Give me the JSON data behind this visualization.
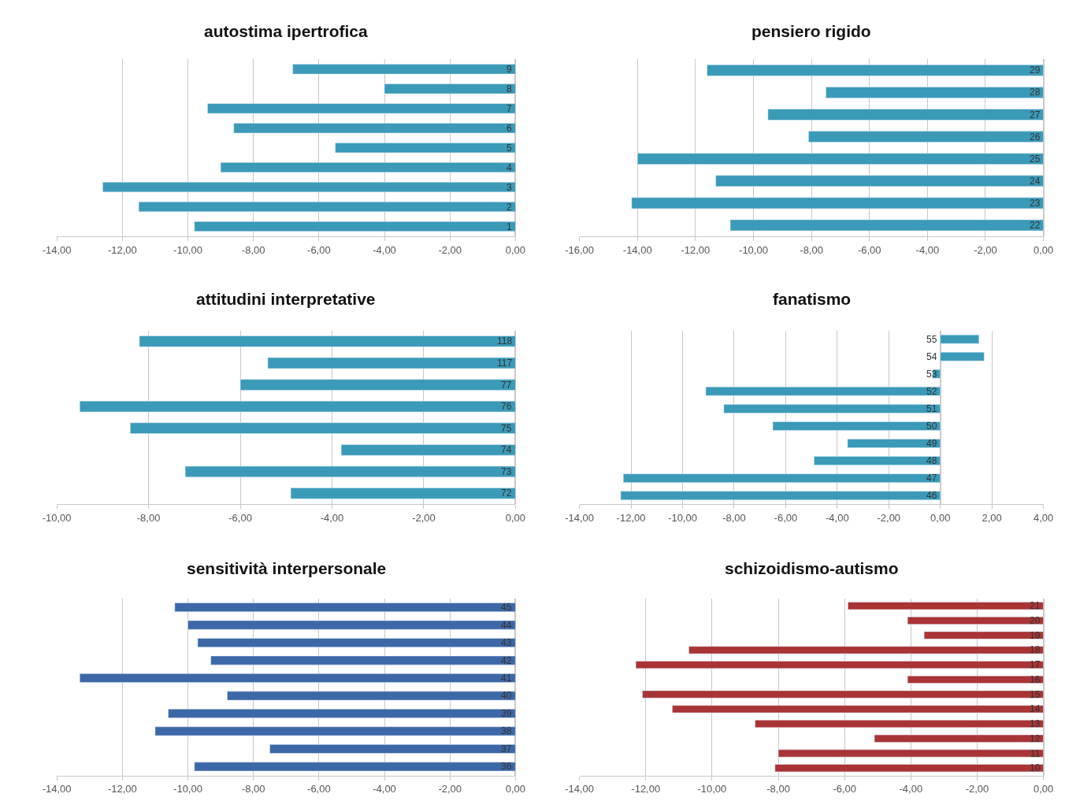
{
  "chart_data": [
    {
      "type": "bar",
      "orientation": "horizontal",
      "title": "autostima ipertrofica",
      "categories": [
        "9",
        "8",
        "7",
        "6",
        "5",
        "4",
        "3",
        "2",
        "1"
      ],
      "values": [
        -6.8,
        -4.0,
        -9.4,
        -8.6,
        -5.5,
        -9.0,
        -12.6,
        -11.5,
        -9.8
      ],
      "color": "#3a9ab8",
      "xlim": [
        -14,
        0
      ],
      "xticks": [
        {
          "value": -14,
          "label": "-14,00"
        },
        {
          "value": -12,
          "label": "-12,00"
        },
        {
          "value": -10,
          "label": "-10,00"
        },
        {
          "value": -8,
          "label": "-8,00"
        },
        {
          "value": -6,
          "label": "-6,00"
        },
        {
          "value": -4,
          "label": "-4,00"
        },
        {
          "value": -2,
          "label": "-2,00"
        },
        {
          "value": 0,
          "label": "0,00"
        }
      ],
      "grid": "x"
    },
    {
      "type": "bar",
      "orientation": "horizontal",
      "title": "pensiero rigido",
      "categories": [
        "29",
        "28",
        "27",
        "26",
        "25",
        "24",
        "23",
        "22"
      ],
      "values": [
        -11.6,
        -7.5,
        -9.5,
        -8.1,
        -14.0,
        -11.3,
        -14.2,
        -10.8
      ],
      "color": "#3a9ab8",
      "xlim": [
        -16,
        0
      ],
      "xticks": [
        {
          "value": -16,
          "label": "-16,00"
        },
        {
          "value": -14,
          "label": "-14,00"
        },
        {
          "value": -12,
          "label": "-12,00"
        },
        {
          "value": -10,
          "label": "-10,00"
        },
        {
          "value": -8,
          "label": "-8,00"
        },
        {
          "value": -6,
          "label": "-6,00"
        },
        {
          "value": -4,
          "label": "-4,00"
        },
        {
          "value": -2,
          "label": "-2,00"
        },
        {
          "value": 0,
          "label": "0,00"
        }
      ],
      "grid": "x"
    },
    {
      "type": "bar",
      "orientation": "horizontal",
      "title": "attitudini interpretative",
      "categories": [
        "118",
        "117",
        "77",
        "76",
        "75",
        "74",
        "73",
        "72"
      ],
      "values": [
        -8.2,
        -5.4,
        -6.0,
        -9.5,
        -8.4,
        -3.8,
        -7.2,
        -4.9
      ],
      "color": "#3a9ab8",
      "xlim": [
        -10,
        0
      ],
      "xticks": [
        {
          "value": -10,
          "label": "-10,00"
        },
        {
          "value": -8,
          "label": "-8,00"
        },
        {
          "value": -6,
          "label": "-6,00"
        },
        {
          "value": -4,
          "label": "-4,00"
        },
        {
          "value": -2,
          "label": "-2,00"
        },
        {
          "value": 0,
          "label": "0,00"
        }
      ],
      "grid": "x"
    },
    {
      "type": "bar",
      "orientation": "horizontal",
      "title": "fanatismo",
      "categories": [
        "55",
        "54",
        "53",
        "52",
        "51",
        "50",
        "49",
        "48",
        "47",
        "46"
      ],
      "values": [
        1.5,
        1.7,
        -0.3,
        -9.1,
        -8.4,
        -6.5,
        -3.6,
        -4.9,
        -12.3,
        -12.4
      ],
      "color": "#3a9ab8",
      "xlim": [
        -14,
        4
      ],
      "xticks": [
        {
          "value": -14,
          "label": "-14,00"
        },
        {
          "value": -12,
          "label": "-12,00"
        },
        {
          "value": -10,
          "label": "-10,00"
        },
        {
          "value": -8,
          "label": "-8,00"
        },
        {
          "value": -6,
          "label": "-6,00"
        },
        {
          "value": -4,
          "label": "-4,00"
        },
        {
          "value": -2,
          "label": "-2,00"
        },
        {
          "value": 0,
          "label": "0,00"
        },
        {
          "value": 2,
          "label": "2,00"
        },
        {
          "value": 4,
          "label": "4,00"
        }
      ],
      "grid": "x"
    },
    {
      "type": "bar",
      "orientation": "horizontal",
      "title": "sensitività interpersonale",
      "categories": [
        "45",
        "44",
        "43",
        "42",
        "41",
        "40",
        "39",
        "38",
        "37",
        "36"
      ],
      "values": [
        -10.4,
        -10.0,
        -9.7,
        -9.3,
        -13.3,
        -8.8,
        -10.6,
        -11.0,
        -7.5,
        -9.8
      ],
      "color": "#3d68a8",
      "xlim": [
        -14,
        0
      ],
      "xticks": [
        {
          "value": -14,
          "label": "-14,00"
        },
        {
          "value": -12,
          "label": "-12,00"
        },
        {
          "value": -10,
          "label": "-10,00"
        },
        {
          "value": -8,
          "label": "-8,00"
        },
        {
          "value": -6,
          "label": "-6,00"
        },
        {
          "value": -4,
          "label": "-4,00"
        },
        {
          "value": -2,
          "label": "-2,00"
        },
        {
          "value": 0,
          "label": "0,00"
        }
      ],
      "grid": "x"
    },
    {
      "type": "bar",
      "orientation": "horizontal",
      "title": "schizoidismo-autismo",
      "categories": [
        "21",
        "20",
        "19",
        "18",
        "17",
        "16",
        "15",
        "14",
        "13",
        "12",
        "11",
        "10"
      ],
      "values": [
        -5.9,
        -4.1,
        -3.6,
        -10.7,
        -12.3,
        -4.1,
        -12.1,
        -11.2,
        -8.7,
        -5.1,
        -8.0,
        -8.1
      ],
      "color": "#a83436",
      "xlim": [
        -14,
        0
      ],
      "xticks": [
        {
          "value": -14,
          "label": "-14,00"
        },
        {
          "value": -12,
          "label": "-12,00"
        },
        {
          "value": -10,
          "label": "-10,00"
        },
        {
          "value": -8,
          "label": "-8,00"
        },
        {
          "value": -6,
          "label": "-6,00"
        },
        {
          "value": -4,
          "label": "-4,00"
        },
        {
          "value": -2,
          "label": "-2,00"
        },
        {
          "value": 0,
          "label": "0,00"
        }
      ],
      "grid": "x"
    }
  ]
}
